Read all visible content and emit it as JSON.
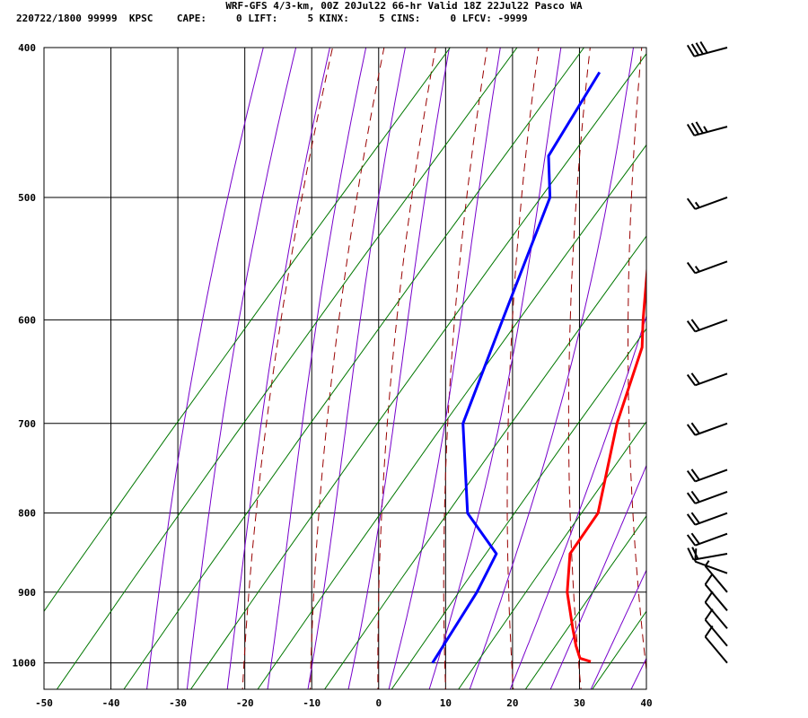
{
  "title": "WRF-GFS 4/3-km, 00Z 20Jul22 66-hr Valid 18Z 22Jul22 Pasco WA",
  "info": {
    "station": "220722/1800 99999  KPSC",
    "cape": "CAPE:     0",
    "lift": "LIFT:     5",
    "kinx": "KINX:     5",
    "cins": "CINS:     0",
    "lfcv": "LFCV: -9999"
  },
  "colors": {
    "temperature": "#ff0000",
    "dewpoint": "#0000ff",
    "dry_adiabat": "#990000",
    "moist_adiabat": "#7700cc",
    "mixing_ratio": "#007700",
    "grid": "#000000"
  },
  "chart_data": {
    "type": "line",
    "title": "WRF-GFS 4/3-km, 00Z 20Jul22 66-hr Valid 18Z 22Jul22 Pasco WA",
    "xlabel": "",
    "ylabel": "",
    "xlim": [
      -50,
      40
    ],
    "ylim": [
      1040,
      400
    ],
    "y_scale": "log (pressure, hPa)",
    "grid": true,
    "x_ticks": [
      "-50",
      "-40",
      "-30",
      "-20",
      "-10",
      "0",
      "10",
      "20",
      "30",
      "40"
    ],
    "y_ticks": [
      "400",
      "500",
      "600",
      "700",
      "800",
      "900",
      "1000"
    ],
    "series": [
      {
        "key": "temperature",
        "points": [
          {
            "p": 998,
            "t": 28.5
          },
          {
            "p": 993,
            "t": 26.5
          },
          {
            "p": 975,
            "t": 24.5
          },
          {
            "p": 950,
            "t": 22
          },
          {
            "p": 900,
            "t": 17
          },
          {
            "p": 850,
            "t": 13
          },
          {
            "p": 800,
            "t": 12.5
          },
          {
            "p": 700,
            "t": 5
          },
          {
            "p": 625,
            "t": 0
          },
          {
            "p": 600,
            "t": -3
          },
          {
            "p": 550,
            "t": -9
          },
          {
            "p": 500,
            "t": -14
          },
          {
            "p": 470,
            "t": -18
          },
          {
            "p": 415,
            "t": -23
          }
        ]
      },
      {
        "key": "dewpoint",
        "points": [
          {
            "p": 1000,
            "t": 5
          },
          {
            "p": 900,
            "t": 3.5
          },
          {
            "p": 850,
            "t": 2
          },
          {
            "p": 800,
            "t": -7
          },
          {
            "p": 700,
            "t": -18
          },
          {
            "p": 600,
            "t": -24
          },
          {
            "p": 500,
            "t": -31
          },
          {
            "p": 470,
            "t": -36
          },
          {
            "p": 415,
            "t": -38
          }
        ]
      }
    ],
    "wind_barbs": [
      {
        "p": 1000,
        "dir": 320,
        "speed": 10
      },
      {
        "p": 975,
        "dir": 320,
        "speed": 10
      },
      {
        "p": 950,
        "dir": 320,
        "speed": 10
      },
      {
        "p": 925,
        "dir": 320,
        "speed": 10
      },
      {
        "p": 900,
        "dir": 320,
        "speed": 5
      },
      {
        "p": 875,
        "dir": 290,
        "speed": 10
      },
      {
        "p": 850,
        "dir": 260,
        "speed": 20
      },
      {
        "p": 825,
        "dir": 250,
        "speed": 20
      },
      {
        "p": 800,
        "dir": 250,
        "speed": 20
      },
      {
        "p": 775,
        "dir": 250,
        "speed": 20
      },
      {
        "p": 750,
        "dir": 250,
        "speed": 20
      },
      {
        "p": 700,
        "dir": 250,
        "speed": 20
      },
      {
        "p": 650,
        "dir": 250,
        "speed": 20
      },
      {
        "p": 600,
        "dir": 250,
        "speed": 20
      },
      {
        "p": 550,
        "dir": 250,
        "speed": 15
      },
      {
        "p": 500,
        "dir": 250,
        "speed": 15
      },
      {
        "p": 450,
        "dir": 255,
        "speed": 35
      },
      {
        "p": 400,
        "dir": 255,
        "speed": 40
      }
    ]
  }
}
